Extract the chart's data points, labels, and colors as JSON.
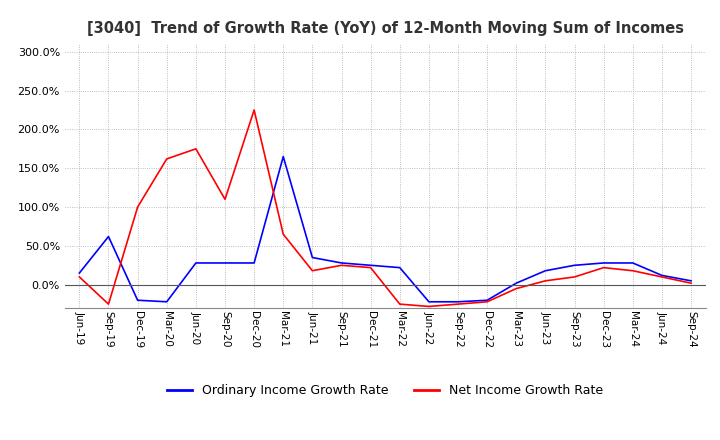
{
  "title": "[3040]  Trend of Growth Rate (YoY) of 12-Month Moving Sum of Incomes",
  "ylim": [
    -30,
    310
  ],
  "yticks": [
    0,
    50,
    100,
    150,
    200,
    250,
    300
  ],
  "ytick_labels": [
    "0.0%",
    "50.0%",
    "100.0%",
    "150.0%",
    "200.0%",
    "250.0%",
    "300.0%"
  ],
  "legend_labels": [
    "Ordinary Income Growth Rate",
    "Net Income Growth Rate"
  ],
  "line_colors": [
    "blue",
    "red"
  ],
  "background_color": "#ffffff",
  "grid_color": "#aaaaaa",
  "x_labels": [
    "Jun-19",
    "Sep-19",
    "Dec-19",
    "Mar-20",
    "Jun-20",
    "Sep-20",
    "Dec-20",
    "Mar-21",
    "Jun-21",
    "Sep-21",
    "Dec-21",
    "Mar-22",
    "Jun-22",
    "Sep-22",
    "Dec-22",
    "Mar-23",
    "Jun-23",
    "Sep-23",
    "Dec-23",
    "Mar-24",
    "Jun-24",
    "Sep-24"
  ],
  "ordinary_income": [
    15,
    62,
    -20,
    -22,
    28,
    28,
    28,
    165,
    35,
    28,
    25,
    22,
    -22,
    -22,
    -20,
    2,
    18,
    25,
    28,
    28,
    12,
    5
  ],
  "net_income": [
    10,
    -25,
    100,
    162,
    175,
    110,
    225,
    65,
    18,
    25,
    22,
    -25,
    -28,
    -25,
    -22,
    -5,
    5,
    10,
    22,
    18,
    10,
    2
  ]
}
